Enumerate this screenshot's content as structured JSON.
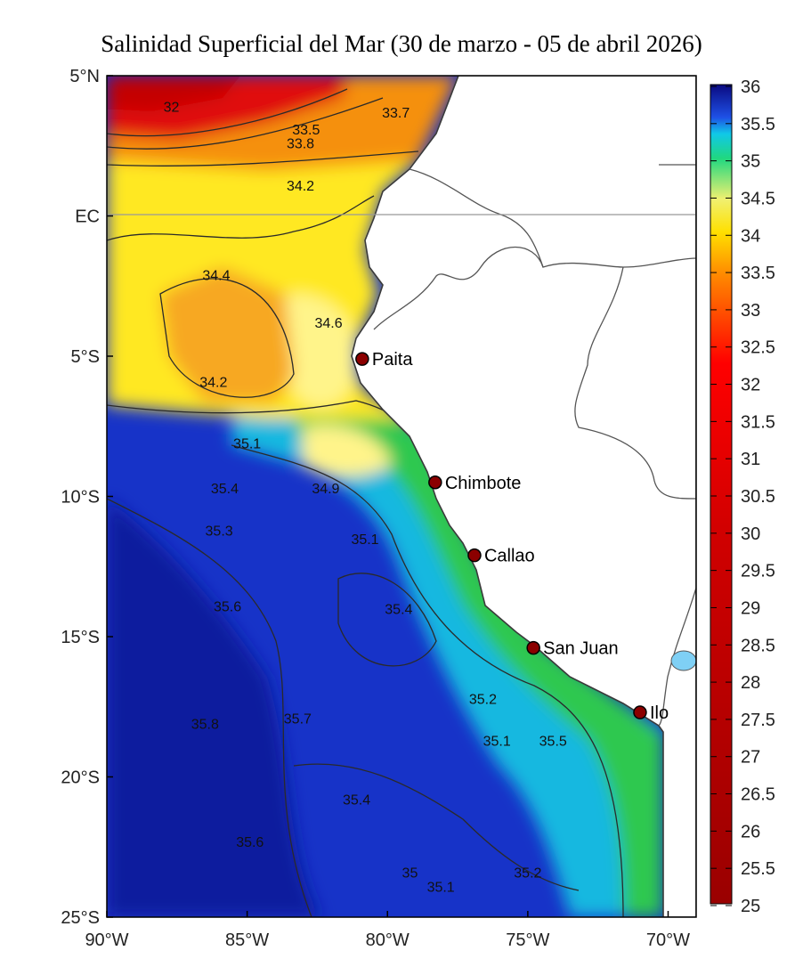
{
  "title": "Salinidad Superficial del Mar (30 de marzo - 05 de abril 2026)",
  "map": {
    "lon_range": [
      -90,
      -69
    ],
    "lat_range": [
      -25,
      5
    ],
    "y_ticks": [
      {
        "lat": 5,
        "label": "5°N"
      },
      {
        "lat": 0,
        "label": "EC"
      },
      {
        "lat": -5,
        "label": "5°S"
      },
      {
        "lat": -10,
        "label": "10°S"
      },
      {
        "lat": -15,
        "label": "15°S"
      },
      {
        "lat": -20,
        "label": "20°S"
      },
      {
        "lat": -25,
        "label": "25°S"
      }
    ],
    "x_ticks": [
      {
        "lon": -90,
        "label": "90°W"
      },
      {
        "lon": -85,
        "label": "85°W"
      },
      {
        "lon": -80,
        "label": "80°W"
      },
      {
        "lon": -75,
        "label": "75°W"
      },
      {
        "lon": -70,
        "label": "70°W"
      }
    ],
    "cities": [
      {
        "name": "Paita",
        "lon": -80.9,
        "lat": -5.1
      },
      {
        "name": "Chimbote",
        "lon": -78.3,
        "lat": -9.5
      },
      {
        "name": "Callao",
        "lon": -76.9,
        "lat": -12.1
      },
      {
        "name": "San Juan",
        "lon": -74.8,
        "lat": -15.4
      },
      {
        "name": "Ilo",
        "lon": -71.0,
        "lat": -17.7
      }
    ],
    "contour_labels": [
      {
        "text": "32",
        "lon": -87.7,
        "lat": 3.9
      },
      {
        "text": "33.7",
        "lon": -79.7,
        "lat": 3.7
      },
      {
        "text": "33.5",
        "lon": -82.9,
        "lat": 3.1
      },
      {
        "text": "33.8",
        "lon": -83.1,
        "lat": 2.6
      },
      {
        "text": "34.2",
        "lon": -83.1,
        "lat": 1.1
      },
      {
        "text": "34.4",
        "lon": -86.1,
        "lat": -2.1
      },
      {
        "text": "34.6",
        "lon": -82.1,
        "lat": -3.8
      },
      {
        "text": "34.2",
        "lon": -86.2,
        "lat": -5.9
      },
      {
        "text": "35.1",
        "lon": -85.0,
        "lat": -8.1
      },
      {
        "text": "35.4",
        "lon": -85.8,
        "lat": -9.7
      },
      {
        "text": "34.9",
        "lon": -82.2,
        "lat": -9.7
      },
      {
        "text": "35.3",
        "lon": -86.0,
        "lat": -11.2
      },
      {
        "text": "35.1",
        "lon": -80.8,
        "lat": -11.5
      },
      {
        "text": "35.6",
        "lon": -85.7,
        "lat": -13.9
      },
      {
        "text": "35.4",
        "lon": -79.6,
        "lat": -14.0
      },
      {
        "text": "35.2",
        "lon": -76.6,
        "lat": -17.2
      },
      {
        "text": "35.8",
        "lon": -86.5,
        "lat": -18.1
      },
      {
        "text": "35.7",
        "lon": -83.2,
        "lat": -17.9
      },
      {
        "text": "35.1",
        "lon": -76.1,
        "lat": -18.7
      },
      {
        "text": "35.5",
        "lon": -74.1,
        "lat": -18.7
      },
      {
        "text": "35.4",
        "lon": -81.1,
        "lat": -20.8
      },
      {
        "text": "35.6",
        "lon": -84.9,
        "lat": -22.3
      },
      {
        "text": "35",
        "lon": -79.2,
        "lat": -23.4
      },
      {
        "text": "35.1",
        "lon": -78.1,
        "lat": -23.9
      },
      {
        "text": "35.2",
        "lon": -75.0,
        "lat": -23.4
      }
    ]
  },
  "colorbar": {
    "range": [
      25,
      36
    ],
    "ticks": [
      "36",
      "35.5",
      "35",
      "34.5",
      "34",
      "33.5",
      "33",
      "32.5",
      "32",
      "31.5",
      "31",
      "30.5",
      "30",
      "29.5",
      "29",
      "28.5",
      "28",
      "27.5",
      "27",
      "26.5",
      "26",
      "25.5",
      "25"
    ],
    "colors": {
      "c25": "#9a0000",
      "c32": "#f00000",
      "c33_5": "#ff8c00",
      "c34": "#ffe000",
      "c34_5": "#f4f79a",
      "c35": "#20d890",
      "c35_5": "#1e50e6",
      "c36": "#0a0a80"
    }
  }
}
